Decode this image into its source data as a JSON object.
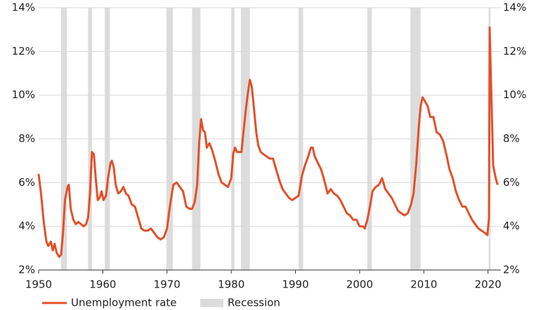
{
  "chart_data": {
    "type": "line",
    "x": [
      1950,
      1950.4,
      1950.8,
      1951.2,
      1951.5,
      1951.9,
      1952.2,
      1952.5,
      1952.8,
      1953.2,
      1953.5,
      1953.8,
      1954.1,
      1954.5,
      1954.7,
      1955,
      1955.4,
      1955.8,
      1956.2,
      1956.6,
      1957,
      1957.4,
      1957.7,
      1958,
      1958.3,
      1958.6,
      1958.9,
      1959.2,
      1959.5,
      1959.8,
      1960.1,
      1960.5,
      1960.8,
      1961.2,
      1961.4,
      1961.7,
      1962,
      1962.4,
      1962.8,
      1963.2,
      1963.6,
      1964,
      1964.5,
      1965,
      1965.5,
      1966,
      1966.5,
      1967,
      1967.5,
      1968,
      1968.5,
      1969,
      1969.5,
      1970,
      1970.4,
      1970.8,
      1971,
      1971.5,
      1972,
      1972.5,
      1973,
      1973.5,
      1973.9,
      1974.3,
      1974.7,
      1975,
      1975.3,
      1975.6,
      1975.9,
      1976.2,
      1976.6,
      1977,
      1977.5,
      1978,
      1978.5,
      1979,
      1979.5,
      1980,
      1980.3,
      1980.6,
      1980.9,
      1981.3,
      1981.6,
      1981.9,
      1982.3,
      1982.6,
      1982.9,
      1983.2,
      1983.5,
      1983.9,
      1984.2,
      1984.6,
      1985,
      1985.5,
      1986,
      1986.5,
      1987,
      1987.5,
      1988,
      1988.5,
      1989,
      1989.5,
      1990,
      1990.5,
      1991,
      1991.5,
      1992,
      1992.4,
      1992.7,
      1993,
      1993.5,
      1994,
      1994.5,
      1995,
      1995.5,
      1996,
      1996.5,
      1997,
      1997.5,
      1998,
      1998.5,
      1999,
      1999.5,
      2000,
      2000.5,
      2000.8,
      2001.2,
      2001.6,
      2002,
      2002.5,
      2003,
      2003.5,
      2004,
      2004.5,
      2005,
      2005.5,
      2006,
      2006.5,
      2007,
      2007.5,
      2008,
      2008.4,
      2008.8,
      2009.2,
      2009.5,
      2009.8,
      2010.2,
      2010.6,
      2011,
      2011.5,
      2012,
      2012.5,
      2013,
      2013.5,
      2014,
      2014.5,
      2015,
      2015.5,
      2016,
      2016.5,
      2017,
      2017.5,
      2018,
      2018.5,
      2019,
      2019.5,
      2019.9,
      2020.15,
      2020.25,
      2020.5,
      2020.8,
      2021.2,
      2021.5
    ],
    "series": [
      {
        "name": "Unemployment rate",
        "color": "#e2502a",
        "values": [
          6.4,
          5.4,
          4.2,
          3.3,
          3.1,
          3.3,
          2.9,
          3.2,
          2.8,
          2.6,
          2.7,
          3.7,
          5.2,
          5.8,
          5.9,
          4.8,
          4.3,
          4.1,
          4.2,
          4.1,
          4.0,
          4.1,
          4.4,
          5.5,
          7.4,
          7.3,
          6.2,
          5.2,
          5.3,
          5.6,
          5.2,
          5.4,
          6.2,
          6.9,
          7.0,
          6.7,
          5.9,
          5.5,
          5.6,
          5.8,
          5.5,
          5.4,
          5.0,
          4.9,
          4.4,
          3.9,
          3.8,
          3.8,
          3.9,
          3.7,
          3.5,
          3.4,
          3.5,
          3.9,
          4.8,
          5.6,
          5.9,
          6.0,
          5.8,
          5.6,
          4.9,
          4.8,
          4.8,
          5.1,
          5.9,
          7.8,
          8.9,
          8.4,
          8.3,
          7.6,
          7.8,
          7.5,
          7.0,
          6.4,
          6.0,
          5.9,
          5.8,
          6.2,
          7.3,
          7.6,
          7.4,
          7.4,
          7.4,
          8.3,
          9.4,
          10.1,
          10.7,
          10.4,
          9.5,
          8.3,
          7.7,
          7.4,
          7.3,
          7.2,
          7.1,
          7.1,
          6.6,
          6.1,
          5.7,
          5.5,
          5.3,
          5.2,
          5.3,
          5.4,
          6.3,
          6.8,
          7.2,
          7.6,
          7.6,
          7.2,
          6.9,
          6.6,
          6.1,
          5.5,
          5.7,
          5.5,
          5.4,
          5.2,
          4.9,
          4.6,
          4.5,
          4.3,
          4.3,
          4.0,
          4.0,
          3.9,
          4.3,
          4.9,
          5.6,
          5.8,
          5.9,
          6.2,
          5.7,
          5.5,
          5.3,
          5.0,
          4.7,
          4.6,
          4.5,
          4.6,
          5.0,
          5.5,
          6.8,
          8.5,
          9.5,
          9.9,
          9.7,
          9.5,
          9.0,
          9.0,
          8.3,
          8.2,
          7.9,
          7.3,
          6.6,
          6.2,
          5.6,
          5.2,
          4.9,
          4.9,
          4.6,
          4.3,
          4.1,
          3.9,
          3.8,
          3.7,
          3.6,
          4.4,
          13.1,
          10.2,
          6.8,
          6.2,
          5.9
        ]
      }
    ],
    "recessions": {
      "name": "Recession",
      "color": "#dcdcdc",
      "spans": [
        [
          1953.5,
          1954.4
        ],
        [
          1957.7,
          1958.3
        ],
        [
          1960.3,
          1961.1
        ],
        [
          1969.9,
          1970.9
        ],
        [
          1973.9,
          1975.2
        ],
        [
          1980.0,
          1980.5
        ],
        [
          1981.5,
          1982.9
        ],
        [
          1990.5,
          1991.2
        ],
        [
          2001.2,
          2001.9
        ],
        [
          2007.9,
          2009.5
        ],
        [
          2020.1,
          2020.4
        ]
      ]
    },
    "xlim": [
      1950,
      2022
    ],
    "xticks": [
      1950,
      1960,
      1970,
      1980,
      1990,
      2000,
      2010,
      2020
    ],
    "ylim": [
      2,
      14
    ],
    "yticks": [
      {
        "value": 2,
        "label": "2%"
      },
      {
        "value": 4,
        "label": "4%"
      },
      {
        "value": 6,
        "label": "6%"
      },
      {
        "value": 8,
        "label": "8%"
      },
      {
        "value": 10,
        "label": "10%"
      },
      {
        "value": 12,
        "label": "12%"
      },
      {
        "value": 14,
        "label": "14%"
      }
    ],
    "grid": true
  }
}
